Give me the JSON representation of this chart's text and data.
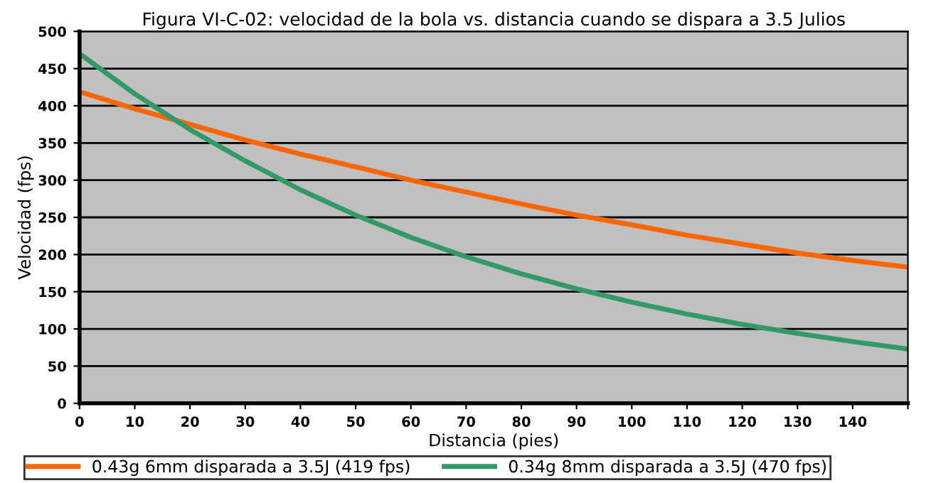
{
  "chart_data": {
    "type": "line",
    "title": "Figura VI-C-02: velocidad de la bola vs. distancia cuando se dispara a 3.5 Julios",
    "xlabel": "Distancia (pies)",
    "ylabel": "Velocidad (fps)",
    "x": [
      0,
      10,
      20,
      30,
      40,
      50,
      60,
      70,
      80,
      90,
      100,
      110,
      120,
      130,
      140,
      150
    ],
    "series": [
      {
        "name": "0.43g 6mm disparada a 3.5J (419 fps)",
        "color": "#ff6600",
        "values": [
          419,
          396,
          375,
          354,
          335,
          318,
          300,
          284,
          268,
          253,
          240,
          226,
          214,
          202,
          192,
          183
        ]
      },
      {
        "name": "0.34g 8mm disparada a 3.5J (470 fps)",
        "color": "#339966",
        "values": [
          470,
          416,
          368,
          326,
          287,
          253,
          223,
          197,
          174,
          154,
          136,
          120,
          106,
          94,
          83,
          73
        ]
      }
    ],
    "xlim": [
      0,
      150
    ],
    "xticks": [
      0,
      10,
      20,
      30,
      40,
      50,
      60,
      70,
      80,
      90,
      100,
      110,
      120,
      130,
      140,
      {
        "value": 150,
        "label": null
      }
    ],
    "ylim": [
      0,
      500
    ],
    "yticks": [
      0,
      50,
      100,
      150,
      200,
      250,
      300,
      350,
      400,
      450,
      500
    ],
    "grid": "y",
    "legend": "bottom",
    "marker": "none",
    "line_style": "solid"
  }
}
